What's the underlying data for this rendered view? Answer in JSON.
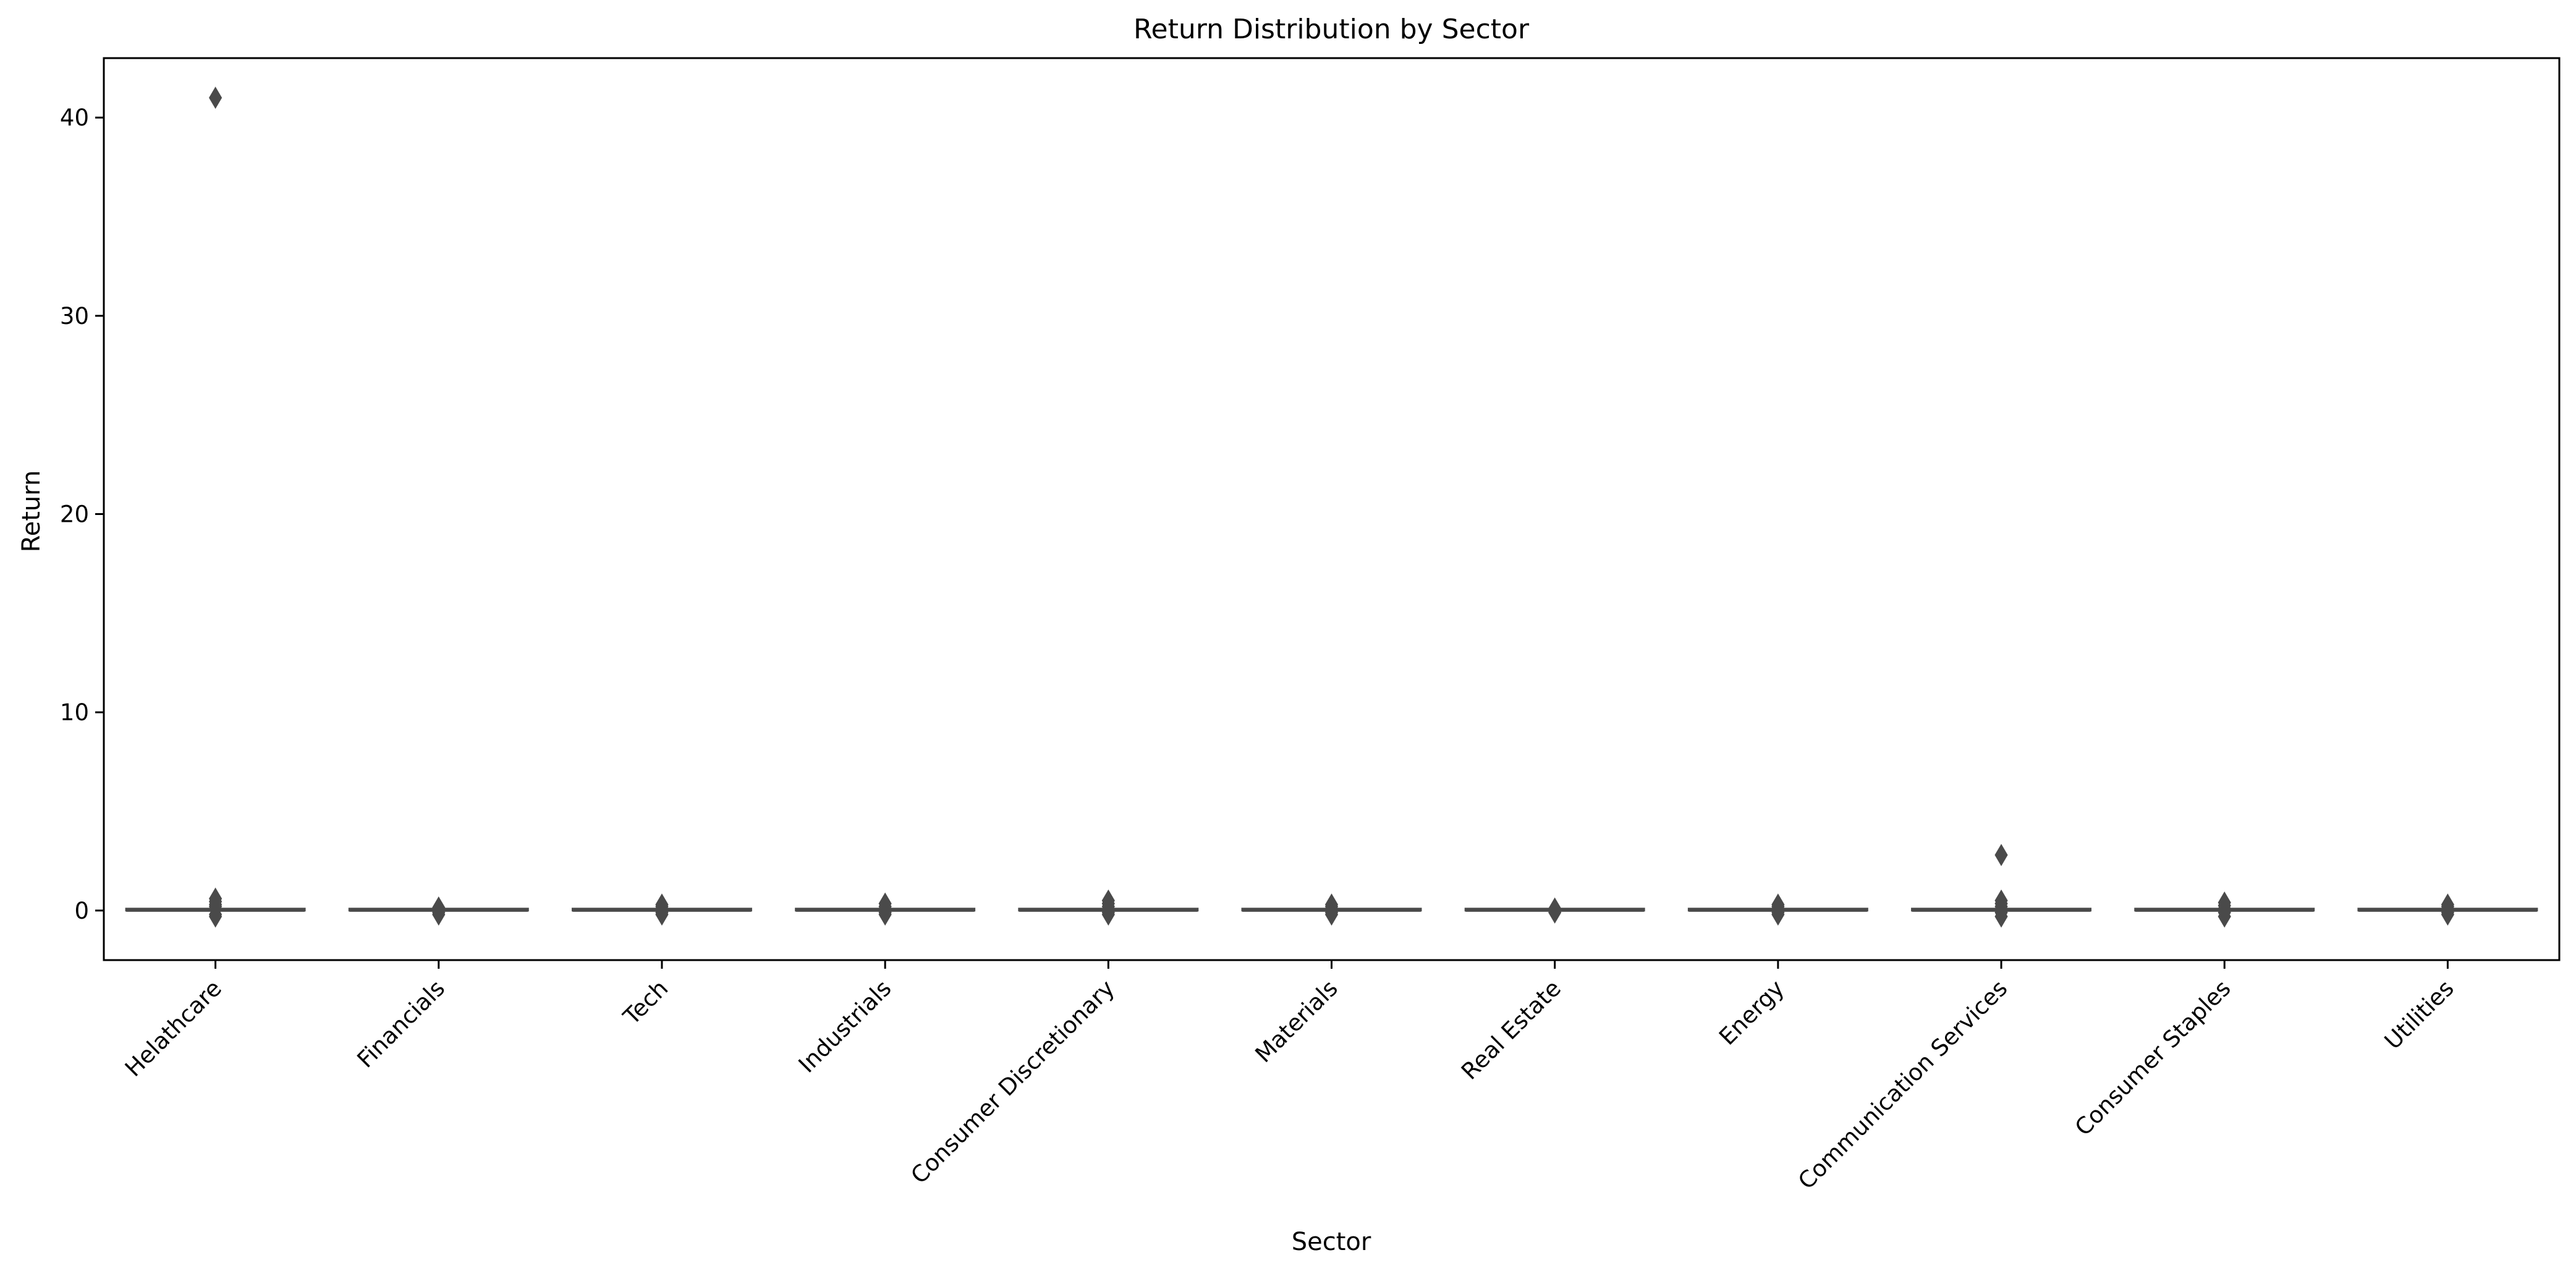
{
  "chart_data": {
    "type": "box",
    "title": "Return Distribution by Sector",
    "xlabel": "Sector",
    "ylabel": "Return",
    "ylim": [
      -2.5,
      43.0
    ],
    "yticks": [
      0,
      10,
      20,
      30,
      40
    ],
    "ytick_labels": [
      "0",
      "10",
      "20",
      "30",
      "40"
    ],
    "grid": false,
    "legend": "none",
    "colors": {
      "box": "#4a4a4a",
      "frame": "#000000",
      "background": "#ffffff"
    },
    "categories": [
      "Helathcare",
      "Financials",
      "Tech",
      "Industrials",
      "Consumer Discretionary",
      "Materials",
      "Real Estate",
      "Energy",
      "Communication Services",
      "Consumer Staples",
      "Utilities"
    ],
    "series": [
      {
        "category": "Helathcare",
        "whisker_low": -0.05,
        "q1": 0.0,
        "median": 0.0,
        "q3": 0.02,
        "whisker_high": 0.05,
        "outliers": [
          41.0,
          0.6,
          0.45,
          0.3,
          0.2,
          -0.2,
          -0.3
        ]
      },
      {
        "category": "Financials",
        "whisker_low": -0.05,
        "q1": 0.0,
        "median": 0.0,
        "q3": 0.0,
        "whisker_high": 0.05,
        "outliers": [
          0.15,
          0.1,
          -0.1,
          -0.2
        ]
      },
      {
        "category": "Tech",
        "whisker_low": -0.05,
        "q1": 0.0,
        "median": 0.0,
        "q3": 0.02,
        "whisker_high": 0.05,
        "outliers": [
          0.3,
          0.2,
          0.1,
          -0.1,
          -0.2
        ]
      },
      {
        "category": "Industrials",
        "whisker_low": -0.05,
        "q1": 0.0,
        "median": 0.0,
        "q3": 0.0,
        "whisker_high": 0.05,
        "outliers": [
          0.35,
          0.2,
          0.1,
          -0.1,
          -0.2
        ]
      },
      {
        "category": "Consumer Discretionary",
        "whisker_low": -0.05,
        "q1": 0.0,
        "median": 0.0,
        "q3": 0.02,
        "whisker_high": 0.05,
        "outliers": [
          0.5,
          0.35,
          0.2,
          -0.1,
          -0.2
        ]
      },
      {
        "category": "Materials",
        "whisker_low": -0.05,
        "q1": 0.0,
        "median": 0.0,
        "q3": 0.0,
        "whisker_high": 0.05,
        "outliers": [
          0.3,
          0.2,
          0.1,
          -0.1,
          -0.2
        ]
      },
      {
        "category": "Real Estate",
        "whisker_low": -0.05,
        "q1": 0.0,
        "median": 0.0,
        "q3": 0.0,
        "whisker_high": 0.05,
        "outliers": [
          0.1,
          -0.1
        ]
      },
      {
        "category": "Energy",
        "whisker_low": -0.05,
        "q1": 0.0,
        "median": 0.0,
        "q3": 0.0,
        "whisker_high": 0.05,
        "outliers": [
          0.3,
          0.2,
          0.1,
          -0.1,
          -0.2
        ]
      },
      {
        "category": "Communication Services",
        "whisker_low": -0.05,
        "q1": 0.0,
        "median": 0.0,
        "q3": 0.02,
        "whisker_high": 0.05,
        "outliers": [
          2.8,
          0.5,
          0.35,
          0.2,
          -0.1,
          -0.3
        ]
      },
      {
        "category": "Consumer Staples",
        "whisker_low": -0.05,
        "q1": 0.0,
        "median": 0.0,
        "q3": 0.0,
        "whisker_high": 0.05,
        "outliers": [
          0.4,
          0.25,
          0.1,
          -0.1,
          -0.3
        ]
      },
      {
        "category": "Utilities",
        "whisker_low": -0.05,
        "q1": 0.0,
        "median": 0.0,
        "q3": 0.0,
        "whisker_high": 0.05,
        "outliers": [
          0.3,
          0.2,
          0.1,
          -0.1,
          -0.2
        ]
      }
    ]
  }
}
